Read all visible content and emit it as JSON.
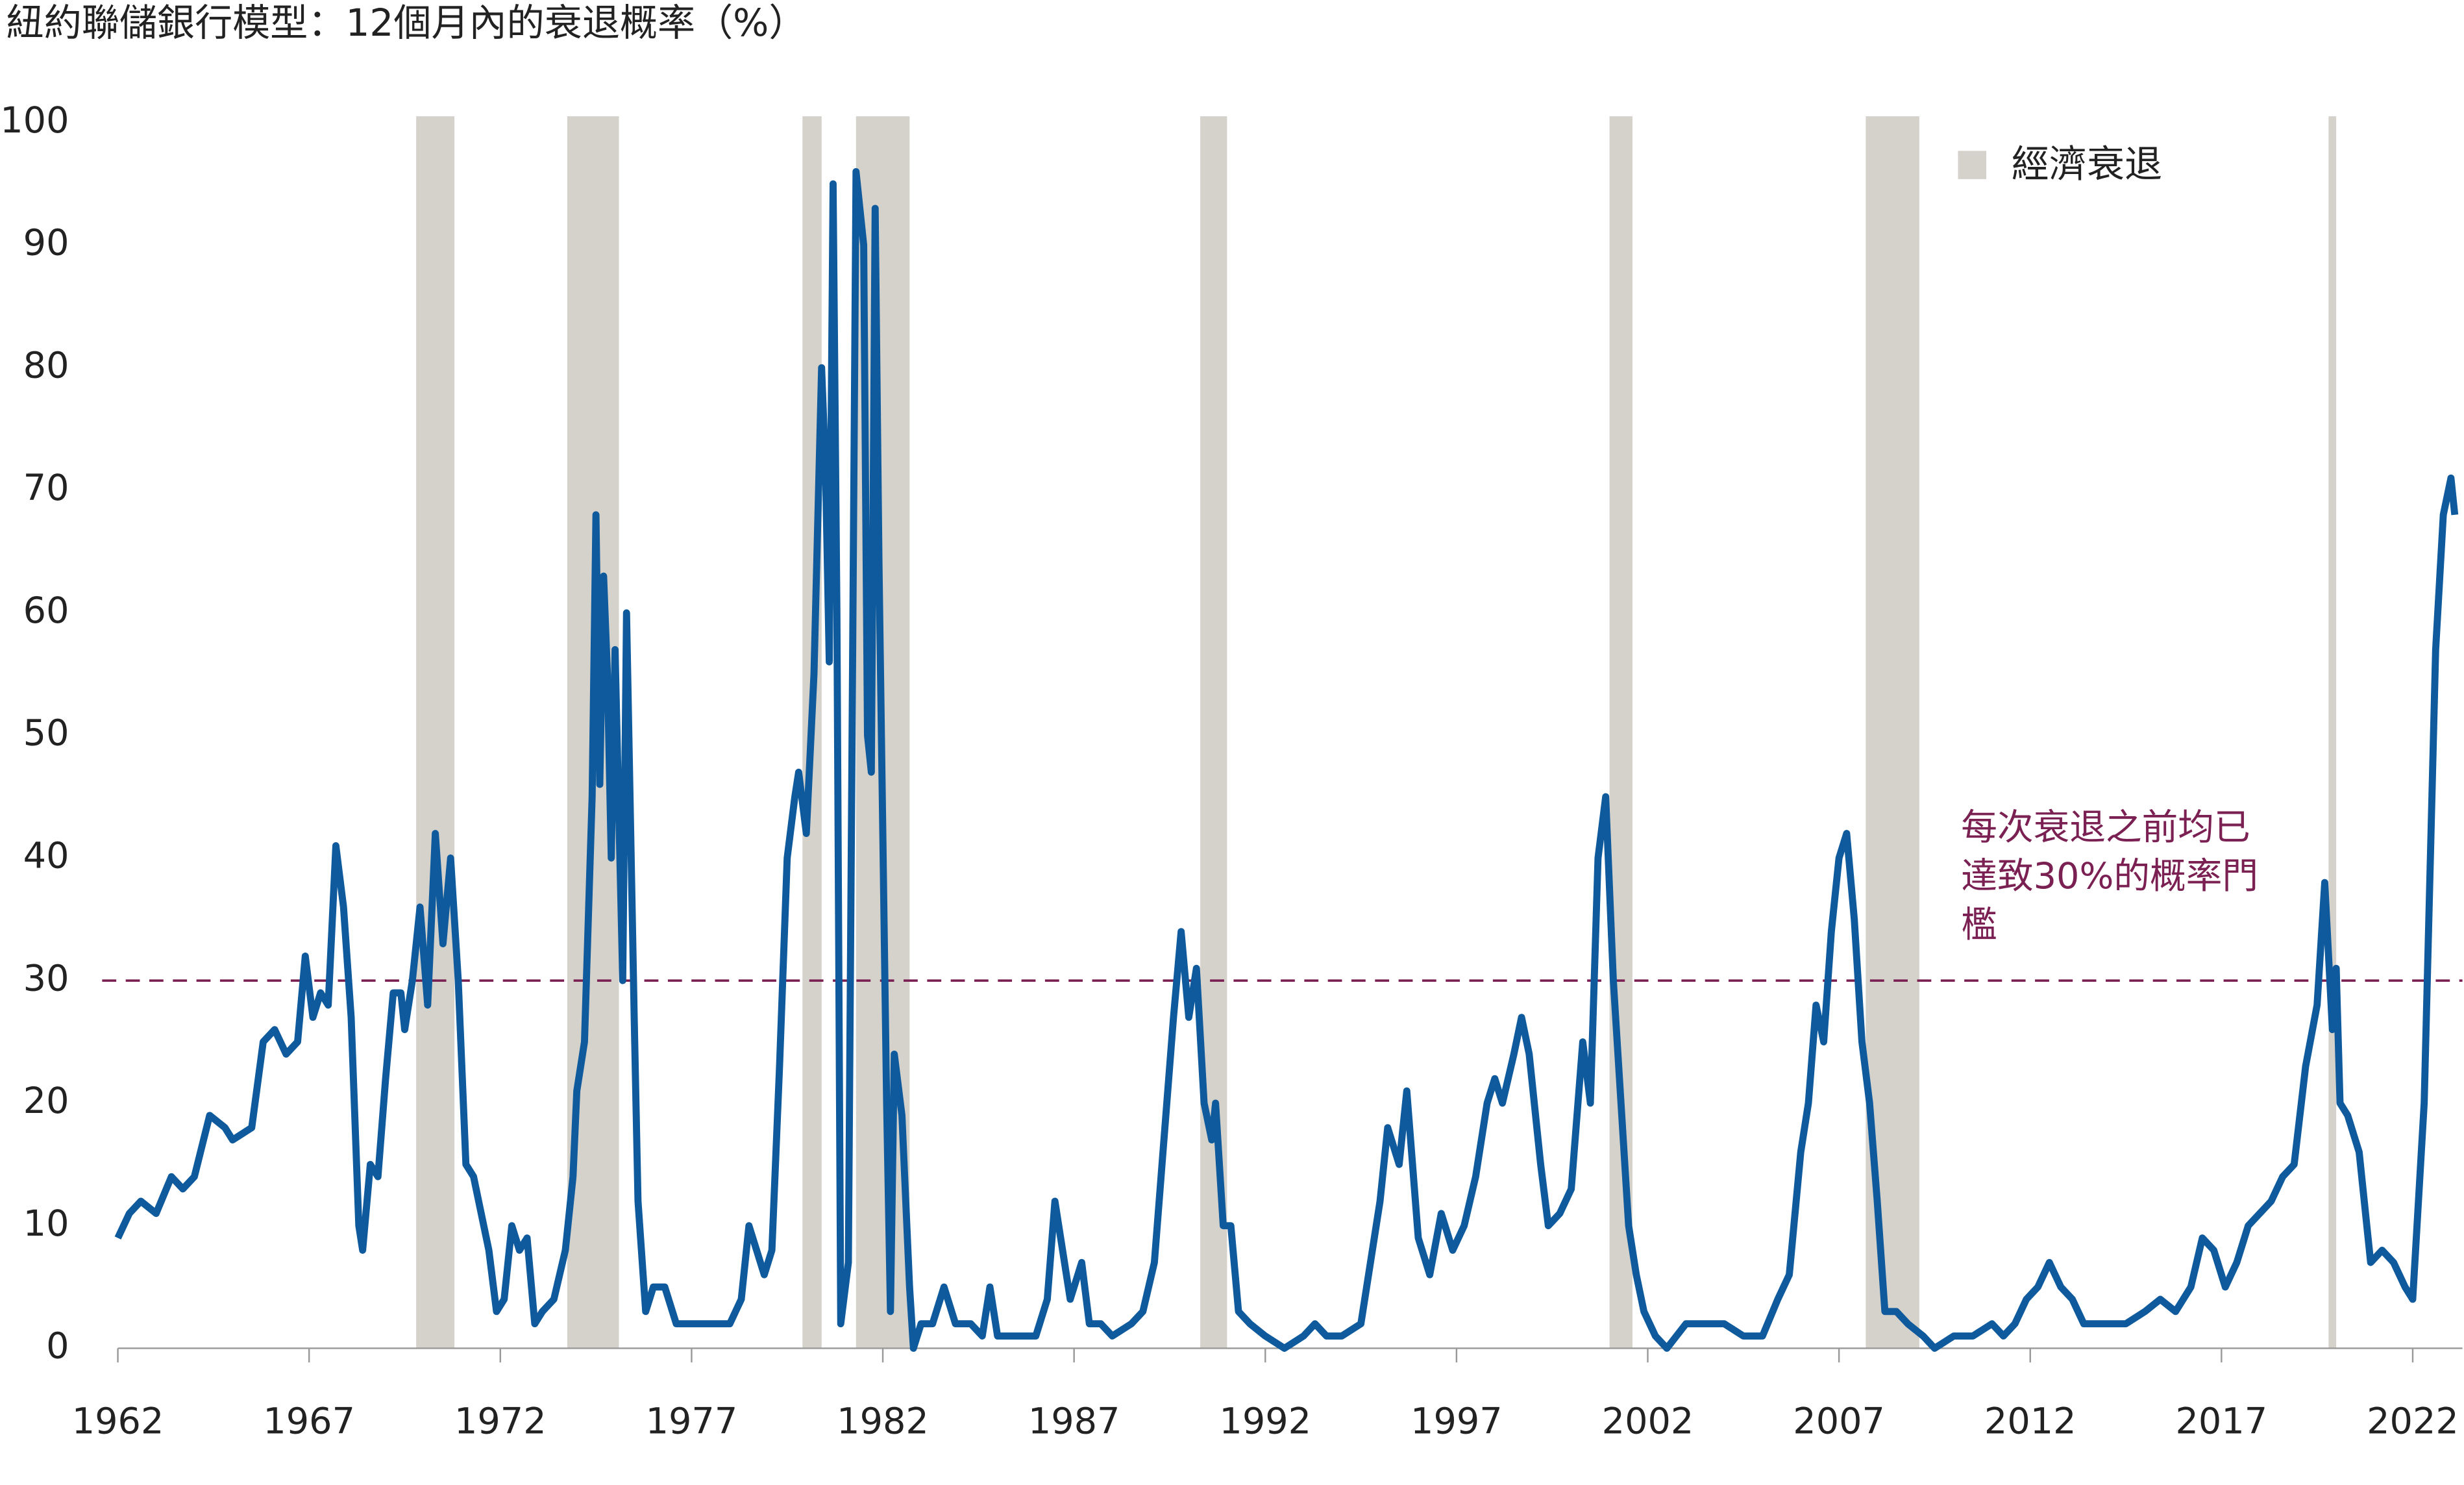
{
  "chart_data": {
    "type": "line",
    "title": "紐約聯儲銀行模型：12個月內的衰退概率（%）",
    "legend_label": "經濟衰退",
    "recession_color": "#d5d1cb",
    "recessions": [
      [
        1969.8,
        1970.8
      ],
      [
        1973.75,
        1975.1
      ],
      [
        1979.9,
        1980.4
      ],
      [
        1981.3,
        1982.7
      ],
      [
        1990.3,
        1991.0
      ],
      [
        2001.0,
        2001.6
      ],
      [
        2007.7,
        2009.1
      ],
      [
        2019.8,
        2020.0
      ]
    ],
    "threshold": 30,
    "threshold_color": "#7b2052",
    "annotation": [
      "每次衰退之前均已",
      "達致30%的概率門",
      "檻"
    ],
    "xlim": [
      1962,
      2023.3
    ],
    "xticks": [
      1962,
      1967,
      1972,
      1977,
      1982,
      1987,
      1992,
      1997,
      2002,
      2007,
      2012,
      2017,
      2022
    ],
    "ylim": [
      0,
      100
    ],
    "yticks": [
      0,
      10,
      20,
      30,
      40,
      50,
      60,
      70,
      80,
      90,
      100
    ],
    "grid": false,
    "series": [
      {
        "name": "紐約聯儲銀行模型",
        "color": "#0e5a9c",
        "x": [
          1962.0,
          1962.3,
          1962.6,
          1963.0,
          1963.4,
          1963.7,
          1964.0,
          1964.4,
          1964.8,
          1965.0,
          1965.5,
          1965.8,
          1966.1,
          1966.4,
          1966.7,
          1966.9,
          1967.1,
          1967.3,
          1967.5,
          1967.7,
          1967.9,
          1968.1,
          1968.3,
          1968.4,
          1968.6,
          1968.8,
          1969.0,
          1969.2,
          1969.4,
          1969.5,
          1969.7,
          1969.9,
          1970.1,
          1970.3,
          1970.5,
          1970.7,
          1970.9,
          1971.1,
          1971.3,
          1971.5,
          1971.7,
          1971.9,
          1972.1,
          1972.3,
          1972.5,
          1972.7,
          1972.9,
          1973.1,
          1973.4,
          1973.7,
          1973.9,
          1974.0,
          1974.2,
          1974.4,
          1974.5,
          1974.6,
          1974.7,
          1974.8,
          1974.9,
          1975.0,
          1975.2,
          1975.3,
          1975.5,
          1975.6,
          1975.8,
          1976.0,
          1976.3,
          1976.6,
          1977.0,
          1977.5,
          1978.0,
          1978.3,
          1978.5,
          1978.7,
          1978.9,
          1979.1,
          1979.3,
          1979.5,
          1979.7,
          1979.8,
          1980.0,
          1980.2,
          1980.4,
          1980.5,
          1980.6,
          1980.7,
          1980.8,
          1980.9,
          1981.1,
          1981.3,
          1981.5,
          1981.6,
          1981.7,
          1981.8,
          1981.9,
          1982.1,
          1982.2,
          1982.3,
          1982.5,
          1982.7,
          1982.8,
          1983.0,
          1983.3,
          1983.6,
          1983.9,
          1984.3,
          1984.6,
          1984.8,
          1985.0,
          1985.5,
          1986.0,
          1986.3,
          1986.5,
          1986.7,
          1986.9,
          1987.2,
          1987.4,
          1987.7,
          1988.0,
          1988.5,
          1988.8,
          1989.1,
          1989.3,
          1989.6,
          1989.8,
          1990.0,
          1990.2,
          1990.4,
          1990.6,
          1990.7,
          1990.9,
          1991.1,
          1991.3,
          1991.6,
          1992.0,
          1992.5,
          1993.0,
          1993.3,
          1993.6,
          1994.0,
          1994.5,
          1994.8,
          1995.0,
          1995.2,
          1995.5,
          1995.7,
          1996.0,
          1996.3,
          1996.6,
          1996.9,
          1997.2,
          1997.5,
          1997.8,
          1998.0,
          1998.2,
          1998.5,
          1998.7,
          1998.9,
          1999.2,
          1999.4,
          1999.7,
          2000.0,
          2000.3,
          2000.5,
          2000.7,
          2000.9,
          2001.1,
          2001.3,
          2001.5,
          2001.7,
          2001.9,
          2002.2,
          2002.5,
          2003.0,
          2003.5,
          2004.0,
          2004.5,
          2005.0,
          2005.4,
          2005.7,
          2006.0,
          2006.2,
          2006.4,
          2006.6,
          2006.8,
          2007.0,
          2007.2,
          2007.4,
          2007.6,
          2007.8,
          2008.0,
          2008.2,
          2008.5,
          2008.8,
          2009.2,
          2009.5,
          2010.0,
          2010.5,
          2011.0,
          2011.3,
          2011.6,
          2011.9,
          2012.2,
          2012.5,
          2012.8,
          2013.1,
          2013.4,
          2013.8,
          2014.5,
          2015.0,
          2015.4,
          2015.8,
          2016.2,
          2016.5,
          2016.8,
          2017.1,
          2017.4,
          2017.7,
          2018.0,
          2018.3,
          2018.6,
          2018.9,
          2019.2,
          2019.5,
          2019.7,
          2019.9,
          2020.0,
          2020.1,
          2020.3,
          2020.6,
          2020.9,
          2021.2,
          2021.5,
          2021.8,
          2022.0,
          2022.3,
          2022.6,
          2022.8,
          2023.0,
          2023.1
        ],
        "values": [
          9,
          11,
          12,
          11,
          14,
          13,
          14,
          19,
          18,
          17,
          18,
          25,
          26,
          24,
          25,
          32,
          27,
          29,
          28,
          41,
          36,
          27,
          10,
          8,
          15,
          14,
          22,
          29,
          29,
          26,
          30,
          36,
          28,
          42,
          33,
          40,
          30,
          15,
          14,
          11,
          8,
          3,
          4,
          10,
          8,
          9,
          2,
          3,
          4,
          8,
          14,
          21,
          25,
          45,
          68,
          46,
          63,
          55,
          40,
          57,
          30,
          60,
          27,
          12,
          3,
          5,
          5,
          2,
          2,
          2,
          2,
          4,
          10,
          8,
          6,
          8,
          23,
          40,
          45,
          47,
          42,
          55,
          80,
          72,
          56,
          95,
          60,
          2,
          7,
          96,
          90,
          50,
          47,
          93,
          64,
          20,
          3,
          24,
          19,
          5,
          0,
          2,
          2,
          5,
          2,
          2,
          1,
          5,
          1,
          1,
          1,
          4,
          12,
          8,
          4,
          7,
          2,
          2,
          1,
          2,
          3,
          7,
          15,
          27,
          34,
          27,
          31,
          20,
          17,
          20,
          10,
          10,
          3,
          2,
          1,
          0,
          1,
          2,
          1,
          1,
          2,
          8,
          12,
          18,
          15,
          21,
          9,
          6,
          11,
          8,
          10,
          14,
          20,
          22,
          20,
          24,
          27,
          24,
          15,
          10,
          11,
          13,
          25,
          20,
          40,
          45,
          30,
          20,
          10,
          6,
          3,
          1,
          0,
          2,
          2,
          2,
          1,
          1,
          4,
          6,
          16,
          20,
          28,
          25,
          34,
          40,
          42,
          35,
          25,
          20,
          12,
          3,
          3,
          2,
          1,
          0,
          1,
          1,
          2,
          1,
          2,
          4,
          5,
          7,
          5,
          4,
          2,
          2,
          2,
          3,
          4,
          3,
          5,
          9,
          8,
          5,
          7,
          10,
          11,
          12,
          14,
          15,
          23,
          28,
          38,
          26,
          31,
          20,
          19,
          16,
          7,
          8,
          7,
          5,
          4,
          20,
          57,
          68,
          71,
          68
        ]
      }
    ]
  }
}
